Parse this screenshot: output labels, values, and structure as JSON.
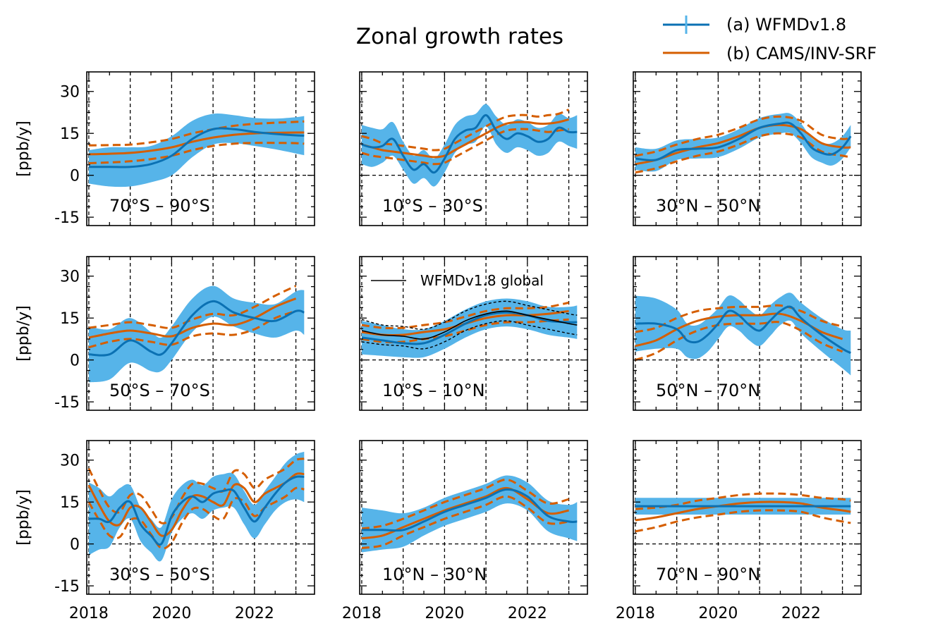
{
  "figure": {
    "title": "Zonal growth rates",
    "legend": [
      {
        "label": "(a) WFMDv1.8",
        "color": "#0b71b3",
        "band_color": "#56b4e9",
        "marker": "errorbar"
      },
      {
        "label": "(b) CAMS/INV-SRF",
        "color": "#d55e00",
        "marker": "line"
      }
    ],
    "inset_legend": {
      "label": "WFMDv1.8 global",
      "color": "#000000"
    },
    "colors": {
      "wfmd_line": "#0b71b3",
      "wfmd_band": "#56b4e9",
      "cams": "#d55e00",
      "global": "#000000"
    }
  },
  "chart_data": {
    "type": "line",
    "layout": "3x3 small multiples, shared axes",
    "title": "Zonal growth rates",
    "ylabel": "[ppb/y]",
    "xlim": [
      2017.95,
      2023.45
    ],
    "ylim": [
      -18,
      37
    ],
    "x_ticks": [
      2018,
      2020,
      2022
    ],
    "x_tick_labels": [
      "2018",
      "2020",
      "2022"
    ],
    "y_ticks": [
      -15,
      0,
      15,
      30
    ],
    "y_tick_labels": [
      "-15",
      "0",
      "15",
      "30"
    ],
    "vertical_gridlines": [
      2018,
      2019,
      2020,
      2021,
      2022,
      2023
    ],
    "horizontal_reference": 0,
    "series_names": [
      "(a) WFMDv1.8",
      "(b) CAMS/INV-SRF"
    ],
    "panels": [
      {
        "region": "70°S – 90°S",
        "wfmd": {
          "x": [
            2018.0,
            2018.5,
            2019.0,
            2019.5,
            2020.0,
            2020.5,
            2021.0,
            2021.5,
            2022.0,
            2022.5,
            2023.0,
            2023.2
          ],
          "y": [
            3,
            3,
            3,
            4,
            7,
            13,
            16.5,
            16.5,
            15.5,
            14.8,
            14.3,
            14.2
          ],
          "unc": [
            6,
            7,
            7,
            6.5,
            7,
            6.5,
            5.5,
            5,
            5,
            5.5,
            6.5,
            7
          ]
        },
        "cams": {
          "x": [
            2018.0,
            2018.5,
            2019.0,
            2019.5,
            2020.0,
            2020.5,
            2021.0,
            2021.5,
            2022.0,
            2022.5,
            2023.0,
            2023.2
          ],
          "y": [
            7.5,
            7.7,
            8,
            8.8,
            10,
            12,
            13.5,
            14.5,
            15,
            15.2,
            15.3,
            15.3
          ],
          "unc": [
            3.2,
            3.1,
            3,
            3,
            3,
            3,
            3,
            3.2,
            3.4,
            3.6,
            3.8,
            4
          ]
        }
      },
      {
        "region": "10°S – 30°S",
        "wfmd": {
          "x": [
            2018.0,
            2018.25,
            2018.5,
            2018.75,
            2019.0,
            2019.25,
            2019.5,
            2019.75,
            2020.0,
            2020.25,
            2020.5,
            2020.75,
            2021.0,
            2021.25,
            2021.5,
            2021.75,
            2022.0,
            2022.25,
            2022.5,
            2022.75,
            2023.0,
            2023.2
          ],
          "y": [
            11,
            10,
            10.5,
            13,
            7,
            2,
            4,
            1,
            6,
            13,
            16,
            17,
            21.5,
            16,
            13,
            15,
            14,
            12,
            13,
            17,
            15.5,
            15.5
          ],
          "unc": [
            7,
            7,
            6,
            6,
            5,
            5,
            5,
            5,
            5,
            5,
            5,
            5,
            4,
            5,
            5,
            5,
            5,
            5,
            5,
            5,
            5,
            6
          ]
        },
        "cams": {
          "x": [
            2018.0,
            2018.25,
            2018.5,
            2018.75,
            2019.0,
            2019.25,
            2019.5,
            2019.75,
            2020.0,
            2020.25,
            2020.5,
            2020.75,
            2021.0,
            2021.25,
            2021.5,
            2021.75,
            2022.0,
            2022.25,
            2022.5,
            2022.75,
            2023.0
          ],
          "y": [
            11,
            10,
            9,
            8.5,
            8,
            7.5,
            7,
            6.5,
            7,
            9,
            11,
            13,
            15,
            17,
            18.5,
            19,
            19,
            18.5,
            18.5,
            19,
            20
          ],
          "unc": [
            3,
            3,
            2.5,
            2.5,
            2.5,
            2.5,
            2.5,
            2.5,
            2.5,
            2.5,
            2.5,
            2.5,
            2.5,
            2.5,
            2.5,
            2.5,
            2.5,
            2.5,
            3,
            3,
            3.5
          ]
        }
      },
      {
        "region": "30°N – 50°N",
        "wfmd": {
          "x": [
            2018.0,
            2018.5,
            2019.0,
            2019.5,
            2020.0,
            2020.5,
            2021.0,
            2021.5,
            2021.75,
            2022.0,
            2022.25,
            2022.5,
            2022.75,
            2023.0,
            2023.2
          ],
          "y": [
            6,
            5.5,
            9,
            9.5,
            10,
            13,
            17,
            18.5,
            18.5,
            15,
            10,
            8,
            7.5,
            10,
            14
          ],
          "unc": [
            4,
            4,
            3.5,
            3.5,
            3.5,
            3.5,
            3.5,
            3.5,
            3.5,
            3.5,
            3.5,
            3.5,
            4,
            4,
            4
          ]
        },
        "cams": {
          "x": [
            2018.0,
            2018.5,
            2019.0,
            2019.5,
            2020.0,
            2020.5,
            2021.0,
            2021.5,
            2022.0,
            2022.5,
            2023.0,
            2023.2
          ],
          "y": [
            4,
            5.5,
            8,
            10,
            11.5,
            14,
            17,
            18,
            16.5,
            11.5,
            10,
            10
          ],
          "unc": [
            3,
            3,
            3,
            3,
            3,
            3,
            3,
            3,
            3,
            3,
            3,
            3.5
          ]
        }
      },
      {
        "region": "50°S – 70°S",
        "wfmd": {
          "x": [
            2018.0,
            2018.5,
            2019.0,
            2019.5,
            2019.75,
            2020.0,
            2020.5,
            2021.0,
            2021.5,
            2022.0,
            2022.5,
            2023.0,
            2023.2
          ],
          "y": [
            2,
            2,
            7,
            3,
            2,
            6,
            16,
            21,
            17,
            15,
            14,
            17.5,
            17
          ],
          "unc": [
            10,
            9,
            8,
            7,
            6,
            6,
            6,
            5.5,
            5,
            5.5,
            6,
            7,
            8
          ]
        },
        "cams": {
          "x": [
            2018.0,
            2018.5,
            2019.0,
            2019.5,
            2020.0,
            2020.5,
            2021.0,
            2021.5,
            2022.0,
            2022.5,
            2023.0
          ],
          "y": [
            8,
            9.5,
            10.5,
            9.5,
            8.5,
            11.5,
            13,
            12.5,
            15,
            19,
            22
          ],
          "unc": [
            3.5,
            3,
            3,
            3,
            3,
            3,
            3.5,
            3.5,
            4,
            4,
            4.5
          ]
        }
      },
      {
        "region": "10°S – 10°N",
        "wfmd": {
          "x": [
            2018.0,
            2018.5,
            2019.0,
            2019.5,
            2020.0,
            2020.5,
            2021.0,
            2021.5,
            2022.0,
            2022.5,
            2023.0,
            2023.2
          ],
          "y": [
            8,
            7,
            6,
            6,
            9,
            13,
            16,
            17,
            16,
            14,
            13.5,
            13.5
          ],
          "unc": [
            6,
            5.5,
            5,
            5,
            5,
            5,
            5,
            5,
            5,
            5,
            5.5,
            6
          ]
        },
        "cams": {
          "x": [
            2018.0,
            2018.5,
            2019.0,
            2019.5,
            2020.0,
            2020.5,
            2021.0,
            2021.5,
            2022.0,
            2022.5,
            2023.0
          ],
          "y": [
            10,
            9,
            9,
            10,
            11,
            13,
            15,
            16,
            16,
            16.5,
            17.5
          ],
          "unc": [
            2.5,
            2.5,
            2.5,
            2.5,
            2.5,
            2.5,
            2.5,
            2.5,
            2.5,
            2.5,
            3
          ]
        },
        "global": {
          "x": [
            2018.0,
            2018.5,
            2019.0,
            2019.5,
            2020.0,
            2020.5,
            2021.0,
            2021.5,
            2022.0,
            2022.5,
            2023.0,
            2023.2
          ],
          "y": [
            10.5,
            9,
            8.5,
            7.5,
            10,
            14,
            16.5,
            17.5,
            16,
            14.5,
            13,
            12.5
          ],
          "unc": [
            4,
            3.5,
            3.5,
            3.5,
            3.5,
            3.5,
            3.5,
            3.5,
            3.5,
            3.5,
            3.5,
            3.5
          ]
        }
      },
      {
        "region": "50°N – 70°N",
        "wfmd": {
          "x": [
            2018.0,
            2018.5,
            2019.0,
            2019.25,
            2019.5,
            2019.75,
            2020.0,
            2020.25,
            2020.5,
            2020.75,
            2021.0,
            2021.25,
            2021.5,
            2021.75,
            2022.0,
            2022.5,
            2023.0,
            2023.2
          ],
          "y": [
            13,
            13,
            11,
            7,
            6.5,
            9,
            13,
            17.5,
            16,
            12.5,
            10.5,
            14,
            17.5,
            19,
            15,
            9,
            4,
            2.5
          ],
          "unc": [
            10,
            9,
            7,
            6,
            6,
            6,
            5.5,
            5.5,
            5.5,
            5.5,
            5.5,
            5.5,
            5,
            5,
            5.5,
            6,
            7,
            8
          ]
        },
        "cams": {
          "x": [
            2018.0,
            2018.5,
            2019.0,
            2019.5,
            2020.0,
            2020.5,
            2021.0,
            2021.5,
            2022.0,
            2022.5,
            2023.0
          ],
          "y": [
            5,
            7,
            11,
            14,
            15.5,
            16,
            16,
            16.5,
            14,
            10,
            7.5
          ],
          "unc": [
            5,
            4.5,
            4,
            3.5,
            3,
            3,
            3,
            3,
            3.5,
            4,
            4.5
          ]
        }
      },
      {
        "region": "30°S – 50°S",
        "wfmd": {
          "x": [
            2018.0,
            2018.25,
            2018.5,
            2018.75,
            2019.0,
            2019.25,
            2019.5,
            2019.75,
            2020.0,
            2020.25,
            2020.5,
            2020.75,
            2021.0,
            2021.25,
            2021.5,
            2021.75,
            2022.0,
            2022.25,
            2022.5,
            2022.75,
            2023.0,
            2023.2
          ],
          "y": [
            9,
            9,
            8,
            13,
            15,
            7,
            3,
            0,
            10,
            15,
            17,
            15,
            18,
            19,
            19,
            13,
            8,
            13,
            18,
            22,
            24,
            24
          ],
          "unc": [
            13,
            11,
            9,
            7,
            6,
            6,
            6,
            6,
            6,
            6,
            6,
            6,
            6,
            6,
            6,
            6,
            6,
            6,
            6,
            7,
            8,
            9
          ]
        },
        "cams": {
          "x": [
            2018.0,
            2018.25,
            2018.5,
            2018.75,
            2019.0,
            2019.25,
            2019.5,
            2019.75,
            2020.0,
            2020.25,
            2020.5,
            2020.75,
            2021.0,
            2021.25,
            2021.5,
            2021.75,
            2022.0,
            2022.25,
            2022.5,
            2022.75,
            2023.0,
            2023.2
          ],
          "y": [
            21,
            14,
            8,
            7,
            13,
            13,
            8,
            3,
            5,
            12,
            17,
            17,
            15,
            14,
            21,
            20,
            15,
            18,
            20,
            22,
            25,
            25
          ],
          "unc": [
            6,
            5.5,
            5,
            4.5,
            4.5,
            4.5,
            4.5,
            4.5,
            4.5,
            4.5,
            4.5,
            4.5,
            5,
            5,
            5,
            5,
            5,
            5,
            5,
            5,
            5,
            5.5
          ]
        }
      },
      {
        "region": "10°N – 30°N",
        "wfmd": {
          "x": [
            2018.0,
            2018.5,
            2019.0,
            2019.5,
            2020.0,
            2020.5,
            2021.0,
            2021.5,
            2022.0,
            2022.5,
            2023.0,
            2023.2
          ],
          "y": [
            5,
            5,
            5,
            8,
            11.5,
            14,
            16.5,
            19.5,
            17,
            10,
            8,
            8
          ],
          "unc": [
            8,
            7,
            6,
            5,
            5,
            5,
            5,
            5,
            5,
            5.5,
            6,
            7
          ]
        },
        "cams": {
          "x": [
            2018.0,
            2018.5,
            2019.0,
            2019.5,
            2020.0,
            2020.5,
            2021.0,
            2021.5,
            2022.0,
            2022.5,
            2023.0
          ],
          "y": [
            2,
            3,
            6,
            9,
            12,
            14.5,
            17,
            20,
            16,
            11,
            12
          ],
          "unc": [
            3.5,
            3.5,
            3,
            3,
            3,
            3,
            3,
            3,
            3,
            3.5,
            4
          ]
        }
      },
      {
        "region": "70°N – 90°N",
        "wfmd": {
          "x": [
            2018.0,
            2018.5,
            2019.0,
            2019.5,
            2020.0,
            2020.5,
            2021.0,
            2021.5,
            2022.0,
            2022.5,
            2023.0,
            2023.2
          ],
          "y": [
            13.5,
            13.5,
            13.5,
            13.5,
            13.5,
            13.5,
            13.5,
            13.5,
            13.5,
            13.5,
            13.5,
            13.5
          ],
          "unc": [
            3,
            3,
            3,
            3,
            3,
            3,
            3,
            3,
            3,
            3,
            3,
            3
          ]
        },
        "cams": {
          "x": [
            2018.0,
            2018.5,
            2019.0,
            2019.5,
            2020.0,
            2020.5,
            2021.0,
            2021.5,
            2022.0,
            2022.5,
            2023.0,
            2023.2
          ],
          "y": [
            8.5,
            9.5,
            11,
            12.5,
            13.5,
            14.5,
            15,
            15,
            14.5,
            13,
            12,
            11.5
          ],
          "unc": [
            4,
            3.5,
            3,
            3,
            3,
            3,
            3,
            3,
            3,
            3.5,
            4,
            4
          ]
        }
      }
    ]
  }
}
